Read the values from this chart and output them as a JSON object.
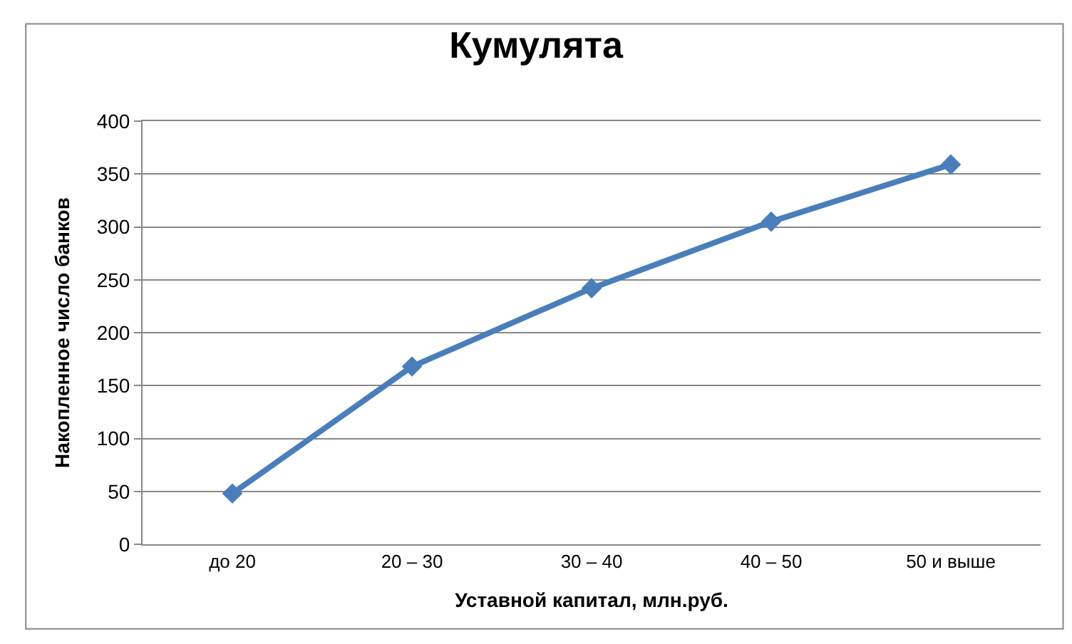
{
  "chart_data": {
    "type": "line",
    "title": "Кумулята",
    "xlabel": "Уставной капитал, млн.руб.",
    "ylabel": "Накопленное число банков",
    "categories": [
      "до 20",
      "20 – 30",
      "30 – 40",
      "40 – 50",
      "50 и выше"
    ],
    "series": [
      {
        "color": "#4a7ebb",
        "values": [
          48,
          168,
          242,
          305,
          359
        ]
      }
    ],
    "ylim": [
      0,
      400
    ],
    "yticks": [
      0,
      50,
      100,
      150,
      200,
      250,
      300,
      350,
      400
    ],
    "grid": "y",
    "marker": "diamond",
    "line_style": "solid"
  }
}
